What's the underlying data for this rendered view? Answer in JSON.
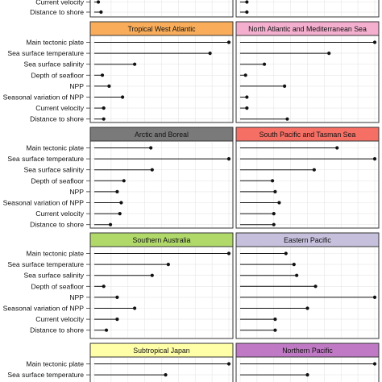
{
  "chart_data": {
    "type": "lollipop",
    "variables": [
      "Main tectonic plate",
      "Sea surface temperature",
      "Sea surface salinity",
      "Depth of seafloor",
      "NPP",
      "Seasonal variation of NPP",
      "Current velocity",
      "Distance to shore"
    ],
    "xlim": [
      0,
      1
    ],
    "grid": true,
    "partial_top": {
      "labels": [
        "Current velocity",
        "Distance to shore"
      ],
      "left": [
        0.03,
        0.05
      ],
      "right": [
        0.05,
        0.05
      ]
    },
    "panels": [
      {
        "title": "Tropical West Atlantic",
        "color": "#f9ad5b",
        "values": [
          1.0,
          0.86,
          0.3,
          0.06,
          0.11,
          0.21,
          0.07,
          0.07
        ]
      },
      {
        "title": "North Atlantic and Mediterranean Sea",
        "color": "#f4afcf",
        "values": [
          1.0,
          0.66,
          0.18,
          0.04,
          0.33,
          0.05,
          0.05,
          0.35
        ]
      },
      {
        "title": "Arctic and Boreal",
        "color": "#7a7a7a",
        "values": [
          0.42,
          1.0,
          0.43,
          0.22,
          0.17,
          0.2,
          0.19,
          0.12
        ]
      },
      {
        "title": "South Pacific and Tasman Sea",
        "color": "#f66f64",
        "values": [
          0.72,
          1.0,
          0.55,
          0.24,
          0.26,
          0.29,
          0.25,
          0.25
        ]
      },
      {
        "title": "Southern Australia",
        "color": "#b1d96a",
        "values": [
          1.0,
          0.55,
          0.43,
          0.07,
          0.17,
          0.3,
          0.17,
          0.09
        ]
      },
      {
        "title": "Eastern Pacific",
        "color": "#c6c0dc",
        "values": [
          0.34,
          0.4,
          0.42,
          0.56,
          1.0,
          0.5,
          0.26,
          0.26
        ]
      },
      {
        "title": "Subtropical Japan",
        "color": "#ffffa8",
        "values": [
          1.0,
          0.53
        ]
      },
      {
        "title": "Northern Pacific",
        "color": "#c079c4",
        "values": [
          1.0,
          0.5
        ]
      }
    ]
  }
}
